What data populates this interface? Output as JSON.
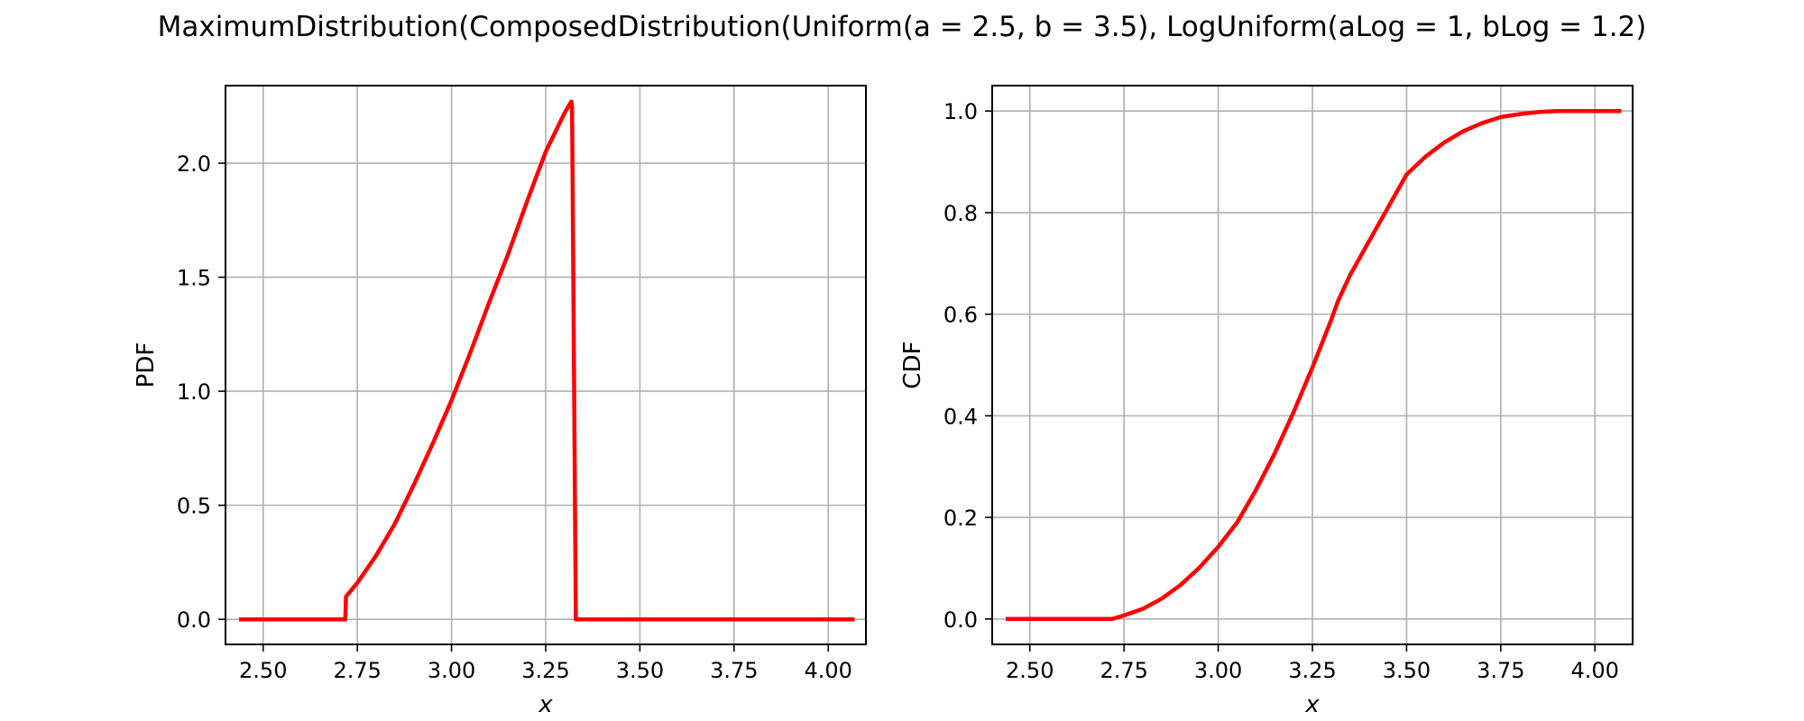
{
  "figure": {
    "title": "MaximumDistribution(ComposedDistribution(Uniform(a = 2.5, b = 3.5), LogUniform(aLog = 1, bLog = 1.2)"
  },
  "chart_data": [
    {
      "type": "line",
      "xlabel": "x",
      "ylabel": "PDF",
      "xlim": [
        2.4,
        4.1
      ],
      "ylim": [
        -0.11,
        2.34
      ],
      "xticks": [
        2.5,
        2.75,
        3.0,
        3.25,
        3.5,
        3.75,
        4.0
      ],
      "xtick_labels": [
        "2.50",
        "2.75",
        "3.00",
        "3.25",
        "3.50",
        "3.75",
        "4.00"
      ],
      "yticks": [
        0.0,
        0.5,
        1.0,
        1.5,
        2.0
      ],
      "ytick_labels": [
        "0.0",
        "0.5",
        "1.0",
        "1.5",
        "2.0"
      ],
      "grid": true,
      "color": "#ff0000",
      "series": [
        {
          "x": [
            2.436,
            2.55,
            2.65,
            2.7,
            2.718,
            2.72,
            2.75,
            2.8,
            2.85,
            2.9,
            2.95,
            3.0,
            3.05,
            3.1,
            3.15,
            3.2,
            3.25,
            3.3,
            3.318,
            3.32,
            3.33,
            3.4,
            3.5,
            3.6,
            3.7,
            3.8,
            3.9,
            4.0,
            4.07
          ],
          "y": [
            0.0,
            0.0,
            0.0,
            0.0,
            0.0,
            0.1,
            0.16,
            0.28,
            0.42,
            0.59,
            0.77,
            0.96,
            1.17,
            1.39,
            1.6,
            1.83,
            2.05,
            2.22,
            2.27,
            2.25,
            0.0,
            0.0,
            0.0,
            0.0,
            0.0,
            0.0,
            0.0,
            0.0,
            0.0
          ]
        }
      ]
    },
    {
      "type": "line",
      "xlabel": "x",
      "ylabel": "CDF",
      "xlim": [
        2.4,
        4.1
      ],
      "ylim": [
        -0.05,
        1.05
      ],
      "xticks": [
        2.5,
        2.75,
        3.0,
        3.25,
        3.5,
        3.75,
        4.0
      ],
      "xtick_labels": [
        "2.50",
        "2.75",
        "3.00",
        "3.25",
        "3.50",
        "3.75",
        "4.00"
      ],
      "yticks": [
        0.0,
        0.2,
        0.4,
        0.6,
        0.8,
        1.0
      ],
      "ytick_labels": [
        "0.0",
        "0.2",
        "0.4",
        "0.6",
        "0.8",
        "1.0"
      ],
      "grid": true,
      "color": "#ff0000",
      "series": [
        {
          "x": [
            2.436,
            2.6,
            2.718,
            2.75,
            2.8,
            2.85,
            2.9,
            2.95,
            3.0,
            3.05,
            3.1,
            3.15,
            3.2,
            3.25,
            3.3,
            3.318,
            3.35,
            3.4,
            3.45,
            3.5,
            3.55,
            3.6,
            3.65,
            3.7,
            3.75,
            3.8,
            3.85,
            3.9,
            3.95,
            4.0,
            4.07
          ],
          "y": [
            0.0,
            0.0,
            0.0,
            0.007,
            0.02,
            0.04,
            0.067,
            0.101,
            0.142,
            0.19,
            0.254,
            0.326,
            0.407,
            0.495,
            0.589,
            0.626,
            0.677,
            0.743,
            0.809,
            0.875,
            0.91,
            0.938,
            0.96,
            0.976,
            0.988,
            0.994,
            0.998,
            1.0,
            1.0,
            1.0,
            1.0
          ]
        }
      ]
    }
  ]
}
